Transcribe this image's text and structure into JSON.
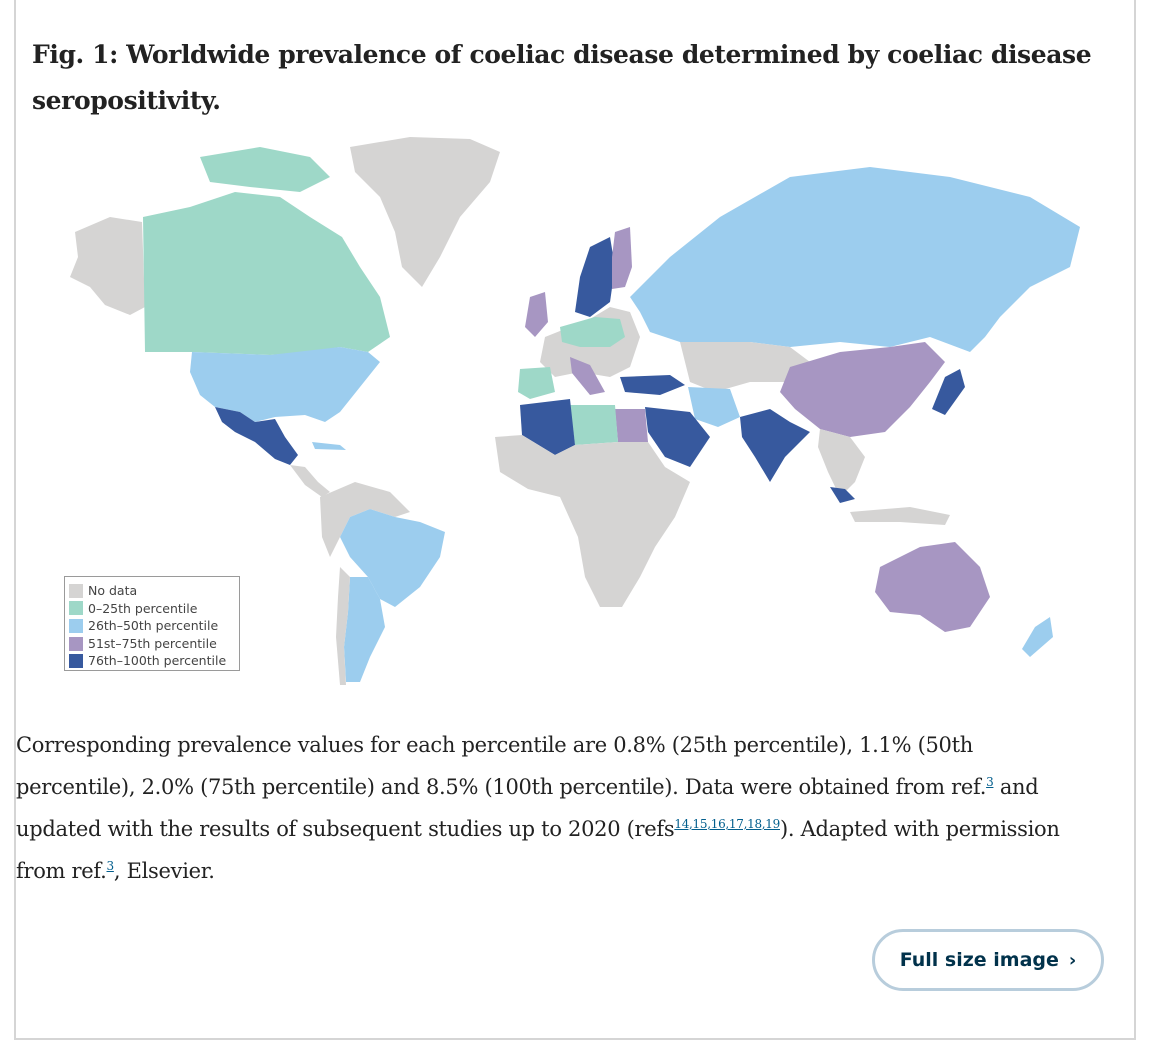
{
  "figure": {
    "title": "Fig. 1: Worldwide prevalence of coeliac disease determined by coeliac disease seropositivity.",
    "colors": {
      "no_data": "#d5d4d3",
      "p0_25": "#9ed8c8",
      "p26_50": "#9ccdee",
      "p51_75": "#a796c2",
      "p76_100": "#37599e",
      "ocean": "#ffffff"
    },
    "legend": [
      {
        "label": "No data",
        "color": "#d5d4d3"
      },
      {
        "label": "0–25th percentile",
        "color": "#9ed8c8"
      },
      {
        "label": "26th–50th percentile",
        "color": "#9ccdee"
      },
      {
        "label": "51st–75th percentile",
        "color": "#a796c2"
      },
      {
        "label": "76th–100th percentile",
        "color": "#37599e"
      }
    ]
  },
  "caption": {
    "part1": "Corresponding prevalence values for each percentile are 0.8% (25th percentile), 1.1% (50th percentile), 2.0% (75th percentile) and 8.5% (100th percentile). Data were obtained from ref.",
    "ref3a": "3",
    "part2": " and updated with the results of subsequent studies up to 2020 (refs",
    "refs": "14,15,16,17,18,19",
    "part3": "). Adapted with permission from ref.",
    "ref3b": "3",
    "part4": ", Elsevier."
  },
  "button": {
    "label": "Full size image",
    "icon": "chevron-right-icon"
  }
}
